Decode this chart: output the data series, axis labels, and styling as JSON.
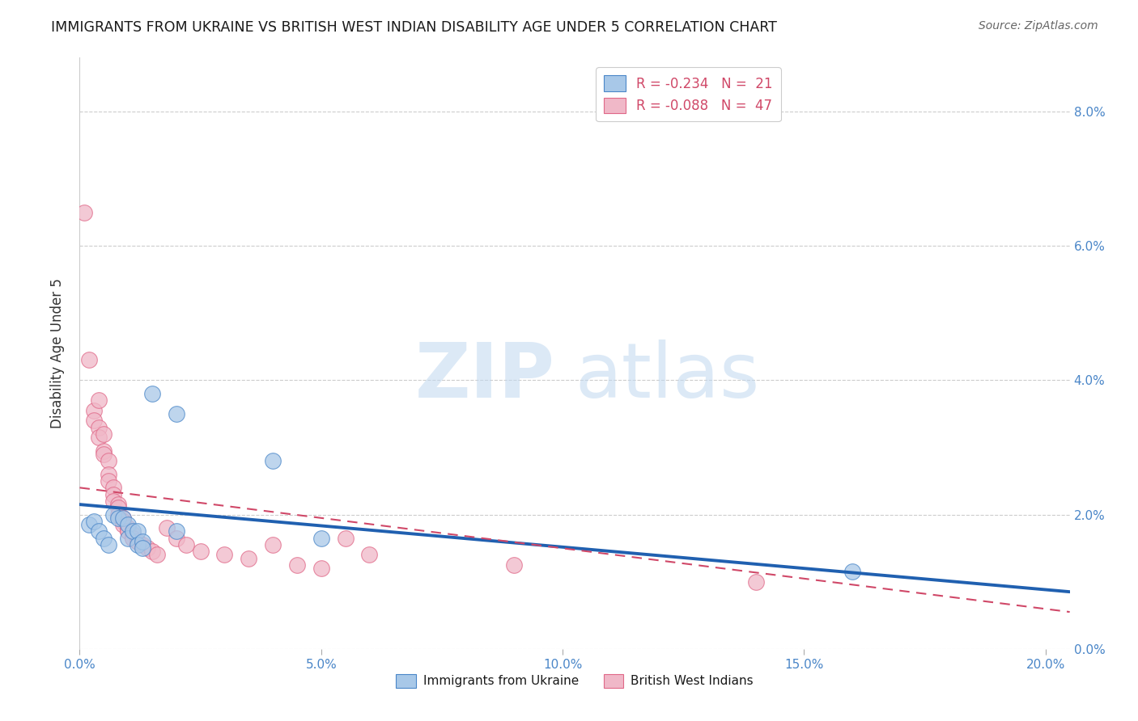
{
  "title": "IMMIGRANTS FROM UKRAINE VS BRITISH WEST INDIAN DISABILITY AGE UNDER 5 CORRELATION CHART",
  "source": "Source: ZipAtlas.com",
  "ylabel": "Disability Age Under 5",
  "legend1_r": "R = -0.234",
  "legend1_n": "N =  21",
  "legend2_r": "R = -0.088",
  "legend2_n": "N =  47",
  "ukraine_color": "#a8c8e8",
  "ukraine_edge_color": "#4a86c8",
  "ukraine_line_color": "#2060b0",
  "bwi_color": "#f0b8c8",
  "bwi_edge_color": "#e06888",
  "bwi_line_color": "#d04868",
  "ukraine_scatter": [
    [
      0.002,
      0.0185
    ],
    [
      0.003,
      0.019
    ],
    [
      0.004,
      0.0175
    ],
    [
      0.005,
      0.0165
    ],
    [
      0.006,
      0.0155
    ],
    [
      0.007,
      0.02
    ],
    [
      0.008,
      0.0195
    ],
    [
      0.009,
      0.0195
    ],
    [
      0.01,
      0.0185
    ],
    [
      0.01,
      0.0165
    ],
    [
      0.011,
      0.0175
    ],
    [
      0.012,
      0.0175
    ],
    [
      0.012,
      0.0155
    ],
    [
      0.013,
      0.016
    ],
    [
      0.013,
      0.015
    ],
    [
      0.015,
      0.038
    ],
    [
      0.02,
      0.035
    ],
    [
      0.02,
      0.0175
    ],
    [
      0.04,
      0.028
    ],
    [
      0.05,
      0.0165
    ],
    [
      0.16,
      0.0115
    ]
  ],
  "bwi_scatter": [
    [
      0.001,
      0.065
    ],
    [
      0.002,
      0.043
    ],
    [
      0.003,
      0.0355
    ],
    [
      0.003,
      0.034
    ],
    [
      0.004,
      0.037
    ],
    [
      0.004,
      0.033
    ],
    [
      0.004,
      0.0315
    ],
    [
      0.005,
      0.032
    ],
    [
      0.005,
      0.0295
    ],
    [
      0.005,
      0.029
    ],
    [
      0.006,
      0.028
    ],
    [
      0.006,
      0.026
    ],
    [
      0.006,
      0.025
    ],
    [
      0.007,
      0.024
    ],
    [
      0.007,
      0.023
    ],
    [
      0.007,
      0.022
    ],
    [
      0.008,
      0.0215
    ],
    [
      0.008,
      0.021
    ],
    [
      0.008,
      0.02
    ],
    [
      0.009,
      0.0195
    ],
    [
      0.009,
      0.019
    ],
    [
      0.009,
      0.0185
    ],
    [
      0.01,
      0.018
    ],
    [
      0.01,
      0.0175
    ],
    [
      0.01,
      0.0175
    ],
    [
      0.011,
      0.017
    ],
    [
      0.011,
      0.0165
    ],
    [
      0.011,
      0.0165
    ],
    [
      0.012,
      0.016
    ],
    [
      0.012,
      0.016
    ],
    [
      0.013,
      0.0155
    ],
    [
      0.014,
      0.015
    ],
    [
      0.015,
      0.0145
    ],
    [
      0.016,
      0.014
    ],
    [
      0.018,
      0.018
    ],
    [
      0.02,
      0.0165
    ],
    [
      0.022,
      0.0155
    ],
    [
      0.025,
      0.0145
    ],
    [
      0.03,
      0.014
    ],
    [
      0.035,
      0.0135
    ],
    [
      0.04,
      0.0155
    ],
    [
      0.045,
      0.0125
    ],
    [
      0.05,
      0.012
    ],
    [
      0.055,
      0.0165
    ],
    [
      0.06,
      0.014
    ],
    [
      0.09,
      0.0125
    ],
    [
      0.14,
      0.01
    ]
  ],
  "xlim": [
    0.0,
    0.205
  ],
  "ylim": [
    0.0,
    0.088
  ],
  "xtick_vals": [
    0.0,
    0.05,
    0.1,
    0.15,
    0.2
  ],
  "ytick_vals": [
    0.0,
    0.02,
    0.04,
    0.06,
    0.08
  ],
  "ukraine_trend_x": [
    0.0,
    0.205
  ],
  "ukraine_trend_y": [
    0.0215,
    0.0085
  ],
  "bwi_trend_x": [
    0.0,
    0.205
  ],
  "bwi_trend_y": [
    0.024,
    0.0055
  ],
  "watermark_line1": "ZIP",
  "watermark_line2": "atlas",
  "grid_color": "#cccccc",
  "axis_tick_color": "#4a86c8",
  "title_color": "#1a1a1a",
  "source_color": "#666666",
  "ylabel_color": "#333333",
  "legend_edge_color": "#cccccc",
  "legend_text_color": "#d04868",
  "legend_bottom_label1": "Immigrants from Ukraine",
  "legend_bottom_label2": "British West Indians"
}
